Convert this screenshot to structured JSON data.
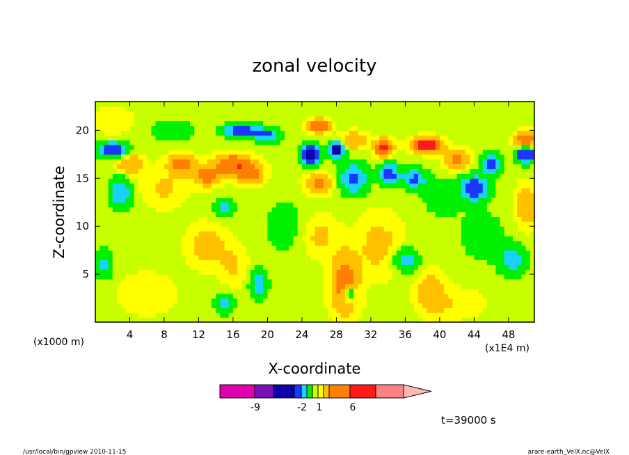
{
  "footer": {
    "left": "/usr/local/bin/gpview  2010-11-15",
    "right": "arare-earth_VelX.nc@VelX"
  },
  "chart_data": {
    "type": "heatmap",
    "title": "zonal velocity",
    "xlabel": "X-coordinate",
    "ylabel": "Z-coordinate",
    "x_scale_note": "(x1E4 m)",
    "y_scale_note": "(x1000 m)",
    "xlim": [
      0,
      51
    ],
    "ylim": [
      0,
      23
    ],
    "x_ticks": [
      4,
      8,
      12,
      16,
      20,
      24,
      28,
      32,
      36,
      40,
      44,
      48
    ],
    "y_ticks": [
      5,
      10,
      15,
      20
    ],
    "time_label": "t=39000 s",
    "colorbar": {
      "bins": [
        {
          "color": "#e000b0"
        },
        {
          "color": "#7a10b8"
        },
        {
          "color": "#1000a8"
        },
        {
          "color": "#1a36ff"
        },
        {
          "color": "#1ad2ff"
        },
        {
          "color": "#00f000"
        },
        {
          "color": "#c8ff00"
        },
        {
          "color": "#ffff00"
        },
        {
          "color": "#ffc000"
        },
        {
          "color": "#ff8000"
        },
        {
          "color": "#ff1a1a"
        },
        {
          "color": "#ff8080"
        },
        {
          "color": "#ffb8b8"
        }
      ],
      "tick_labels": [
        "-9",
        "-2",
        "1",
        "6"
      ]
    },
    "features": [
      {
        "x": 2,
        "y": 18,
        "sx": 1.8,
        "sy": 0.8,
        "v": -3.5
      },
      {
        "x": 3,
        "y": 13.5,
        "sx": 1.2,
        "sy": 1.6,
        "v": -2.5
      },
      {
        "x": 4,
        "y": 16.5,
        "sx": 1.5,
        "sy": 1.0,
        "v": 1.8
      },
      {
        "x": 2,
        "y": 21,
        "sx": 2.5,
        "sy": 1.2,
        "v": 0.6
      },
      {
        "x": 8,
        "y": 14,
        "sx": 2.5,
        "sy": 1.8,
        "v": 0.8
      },
      {
        "x": 10,
        "y": 16.5,
        "sx": 1.5,
        "sy": 1.0,
        "v": 2.3
      },
      {
        "x": 13,
        "y": 15.3,
        "sx": 1.5,
        "sy": 1.0,
        "v": 2.3
      },
      {
        "x": 16,
        "y": 16.5,
        "sx": 2.0,
        "sy": 1.0,
        "v": 3.0
      },
      {
        "x": 18,
        "y": 15.5,
        "sx": 1.5,
        "sy": 1.0,
        "v": 2.5
      },
      {
        "x": 15,
        "y": 12,
        "sx": 1.2,
        "sy": 1.0,
        "v": -1.6
      },
      {
        "x": 13,
        "y": 8,
        "sx": 2.0,
        "sy": 2.0,
        "v": 1.2
      },
      {
        "x": 16,
        "y": 6,
        "sx": 1.5,
        "sy": 2.0,
        "v": 0.8
      },
      {
        "x": 19,
        "y": 4,
        "sx": 1.0,
        "sy": 1.5,
        "v": -2.0
      },
      {
        "x": 15,
        "y": 2,
        "sx": 1.0,
        "sy": 1.0,
        "v": -2.0
      },
      {
        "x": 17,
        "y": 20,
        "sx": 2.0,
        "sy": 0.7,
        "v": -3.5
      },
      {
        "x": 20,
        "y": 19.5,
        "sx": 1.5,
        "sy": 0.7,
        "v": -2.5
      },
      {
        "x": 25,
        "y": 17.5,
        "sx": 1.0,
        "sy": 1.0,
        "v": -5.0
      },
      {
        "x": 28,
        "y": 18,
        "sx": 0.8,
        "sy": 0.8,
        "v": -6.0
      },
      {
        "x": 26,
        "y": 20.5,
        "sx": 1.2,
        "sy": 0.7,
        "v": 3.0
      },
      {
        "x": 30,
        "y": 19,
        "sx": 1.5,
        "sy": 0.8,
        "v": 1.8
      },
      {
        "x": 26,
        "y": 14.5,
        "sx": 1.5,
        "sy": 1.0,
        "v": 2.0
      },
      {
        "x": 30,
        "y": 15,
        "sx": 1.5,
        "sy": 1.5,
        "v": -3.0
      },
      {
        "x": 33.5,
        "y": 18.2,
        "sx": 1.0,
        "sy": 0.8,
        "v": 4.0
      },
      {
        "x": 34,
        "y": 15.5,
        "sx": 1.0,
        "sy": 1.0,
        "v": -4.0
      },
      {
        "x": 38.5,
        "y": 18.5,
        "sx": 1.5,
        "sy": 0.7,
        "v": 5.0
      },
      {
        "x": 42,
        "y": 17,
        "sx": 1.5,
        "sy": 1.0,
        "v": 2.0
      },
      {
        "x": 37,
        "y": 15,
        "sx": 1.5,
        "sy": 1.0,
        "v": -2.5
      },
      {
        "x": 44,
        "y": 14,
        "sx": 1.5,
        "sy": 1.2,
        "v": -4.0
      },
      {
        "x": 46,
        "y": 16.5,
        "sx": 1.0,
        "sy": 1.0,
        "v": -4.0
      },
      {
        "x": 50,
        "y": 17.5,
        "sx": 1.0,
        "sy": 0.8,
        "v": -5.0
      },
      {
        "x": 50,
        "y": 19,
        "sx": 1.2,
        "sy": 0.8,
        "v": 3.0
      },
      {
        "x": 29,
        "y": 4,
        "sx": 1.5,
        "sy": 3.0,
        "v": 2.5
      },
      {
        "x": 29.5,
        "y": 3,
        "sx": 0.7,
        "sy": 0.8,
        "v": -3.0
      },
      {
        "x": 26,
        "y": 9,
        "sx": 2.0,
        "sy": 2.0,
        "v": 0.9
      },
      {
        "x": 33,
        "y": 8,
        "sx": 2.5,
        "sy": 3.0,
        "v": 1.0
      },
      {
        "x": 36,
        "y": 6.5,
        "sx": 1.5,
        "sy": 1.2,
        "v": -2.0
      },
      {
        "x": 39,
        "y": 3,
        "sx": 1.5,
        "sy": 2.0,
        "v": 1.5
      },
      {
        "x": 42,
        "y": 2,
        "sx": 3.0,
        "sy": 1.5,
        "v": 0.6
      },
      {
        "x": 48.5,
        "y": 6.5,
        "sx": 1.5,
        "sy": 1.5,
        "v": -2.0
      },
      {
        "x": 50,
        "y": 12,
        "sx": 1.2,
        "sy": 2.0,
        "v": 1.5
      },
      {
        "x": 6,
        "y": 3,
        "sx": 3.0,
        "sy": 2.0,
        "v": 0.6
      },
      {
        "x": 1,
        "y": 6,
        "sx": 1.0,
        "sy": 1.5,
        "v": -1.5
      },
      {
        "x": 22,
        "y": 10,
        "sx": 2.5,
        "sy": 3.0,
        "v": -0.7
      },
      {
        "x": 45,
        "y": 9,
        "sx": 3.0,
        "sy": 3.0,
        "v": -0.7
      },
      {
        "x": 9,
        "y": 20,
        "sx": 3.0,
        "sy": 1.2,
        "v": -0.8
      },
      {
        "x": 40,
        "y": 13,
        "sx": 2.5,
        "sy": 2.5,
        "v": -0.6
      }
    ]
  }
}
